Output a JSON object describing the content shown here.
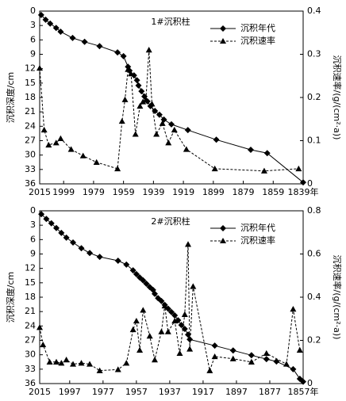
{
  "chart_data": [
    {
      "type": "line",
      "title": "1#沉积柱",
      "y_label": "沉积深度/cm",
      "y2_label": "沉积速率/(g/(cm²·a))",
      "xlim": [
        2015,
        1839
      ],
      "xticks": [
        2015,
        1999,
        1979,
        1959,
        1939,
        1919,
        1899,
        1879,
        1859,
        {
          "value": 1839,
          "label": "1839年"
        }
      ],
      "ylim": [
        0,
        36
      ],
      "y_inverted": true,
      "yticks": [
        0,
        3,
        6,
        9,
        12,
        15,
        18,
        21,
        24,
        27,
        30,
        33,
        36
      ],
      "y2lim": [
        0,
        0.4
      ],
      "y2ticks": [
        0,
        0.1,
        0.2,
        0.3,
        0.4
      ],
      "legend": "upper right",
      "series": [
        {
          "name": "沉积年代",
          "color": "#000000",
          "marker": "diamond",
          "line": "solid",
          "x": [
            2014,
            2011,
            2008,
            2004,
            2001,
            1993,
            1985,
            1975,
            1963,
            1959,
            1956,
            1955,
            1952,
            1950,
            1949,
            1947,
            1945,
            1943,
            1941,
            1938,
            1935,
            1932,
            1927,
            1916,
            1897,
            1874,
            1863,
            1839
          ],
          "values": [
            0.8,
            1.8,
            2.6,
            3.5,
            4.3,
            5.6,
            6.4,
            7.3,
            8.6,
            9.4,
            11.6,
            12.4,
            13.4,
            14.4,
            15.5,
            16.7,
            17.8,
            18.8,
            19.8,
            20.8,
            21.6,
            22.6,
            23.6,
            24.8,
            26.8,
            28.9,
            29.6,
            35.7
          ]
        },
        {
          "name": "沉积速率",
          "color": "#000000",
          "marker": "triangle",
          "line": "dashed",
          "axis": "y2",
          "x": [
            2015,
            2012,
            2009,
            2004,
            2001,
            1994,
            1986,
            1977,
            1963,
            1960,
            1958,
            1956,
            1954,
            1951,
            1948,
            1946,
            1944,
            1942,
            1940,
            1937,
            1933,
            1929,
            1925,
            1917,
            1898,
            1865,
            1842
          ],
          "values": [
            0.268,
            0.125,
            0.09,
            0.095,
            0.105,
            0.08,
            0.065,
            0.05,
            0.035,
            0.145,
            0.195,
            0.265,
            0.255,
            0.115,
            0.18,
            0.19,
            0.195,
            0.31,
            0.185,
            0.115,
            0.14,
            0.095,
            0.125,
            0.08,
            0.035,
            0.03,
            0.035
          ]
        }
      ]
    },
    {
      "type": "line",
      "title": "2#沉积柱",
      "y_label": "沉积深度/cm",
      "y2_label": "沉积速率/(g/(cm²·a))",
      "xlim": [
        2015,
        1857
      ],
      "xticks": [
        2015,
        1997,
        1977,
        1957,
        1937,
        1917,
        1897,
        1877,
        {
          "value": 1857,
          "label": "1857年"
        }
      ],
      "ylim": [
        0,
        36
      ],
      "y_inverted": true,
      "yticks": [
        0,
        3,
        6,
        9,
        12,
        15,
        18,
        21,
        24,
        27,
        30,
        33,
        36
      ],
      "y2lim": [
        0,
        0.8
      ],
      "y2ticks": [
        0,
        0.2,
        0.4,
        0.6,
        0.8
      ],
      "legend": "upper right",
      "series": [
        {
          "name": "沉积年代",
          "color": "#000000",
          "marker": "diamond",
          "line": "solid",
          "x": [
            2014,
            2011,
            2008,
            2005,
            2002,
            1999,
            1995,
            1990,
            1985,
            1979,
            1968,
            1963,
            1959,
            1957,
            1955,
            1953,
            1951,
            1949,
            1947,
            1946,
            1944,
            1942,
            1940,
            1938,
            1936,
            1934,
            1932,
            1930,
            1928,
            1926,
            1925,
            1910,
            1899,
            1888,
            1879,
            1873,
            1863,
            1859,
            1857
          ],
          "values": [
            0.7,
            1.7,
            2.6,
            3.6,
            4.6,
            5.6,
            6.6,
            7.8,
            8.8,
            9.6,
            10.4,
            11.2,
            12.4,
            13.2,
            13.9,
            14.5,
            15.2,
            15.9,
            16.5,
            17.3,
            18.2,
            18.8,
            19.6,
            20.4,
            21.1,
            21.8,
            22.8,
            23.8,
            24.6,
            25.8,
            26.8,
            28.1,
            29.1,
            30.1,
            30.9,
            31.4,
            33,
            35,
            35.6
          ]
        },
        {
          "name": "沉积速率",
          "color": "#000000",
          "marker": "triangle",
          "line": "dashed",
          "axis": "y2",
          "x": [
            2015,
            2013,
            2009,
            2005,
            2002,
            1999,
            1995,
            1990,
            1985,
            1979,
            1968,
            1963,
            1959,
            1957,
            1955,
            1953,
            1949,
            1946,
            1942,
            1940,
            1938,
            1934,
            1931,
            1928,
            1926,
            1925,
            1923,
            1913,
            1910,
            1899,
            1888,
            1879,
            1867,
            1863,
            1859
          ],
          "values": [
            0.26,
            0.18,
            0.1,
            0.1,
            0.095,
            0.11,
            0.09,
            0.095,
            0.09,
            0.06,
            0.065,
            0.095,
            0.25,
            0.29,
            0.155,
            0.34,
            0.22,
            0.11,
            0.24,
            0.36,
            0.24,
            0.29,
            0.14,
            0.32,
            0.645,
            0.16,
            0.45,
            0.06,
            0.125,
            0.115,
            0.1,
            0.14,
            0.09,
            0.345,
            0.155
          ]
        }
      ]
    }
  ]
}
